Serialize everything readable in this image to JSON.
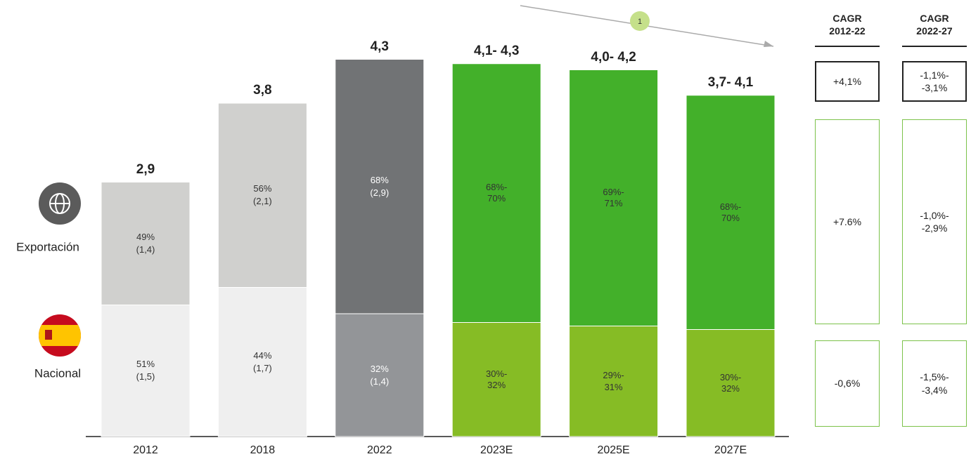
{
  "chart_data": {
    "type": "stacked_bar",
    "categories": [
      "2012",
      "2018",
      "2022",
      "2023E",
      "2025E",
      "2027E"
    ],
    "totals": [
      "2,9",
      "3,8",
      "4,3",
      "4,1- 4,3",
      "4,0- 4,2",
      "3,7- 4,1"
    ],
    "series": [
      {
        "name": "Nacional",
        "colors": [
          "#efefef",
          "#efefef",
          "#939598",
          "#86bc25",
          "#86bc25",
          "#86bc25"
        ],
        "values": [
          1.5,
          1.7,
          1.4,
          1.3,
          1.26,
          1.22
        ],
        "share_labels": [
          "51%",
          "44%",
          "32%",
          "30%-\n32%",
          "29%-\n31%",
          "30%-\n32%"
        ],
        "value_labels": [
          "(1,5)",
          "(1,7)",
          "(1,4)",
          null,
          null,
          null
        ]
      },
      {
        "name": "Exportación",
        "colors": [
          "#d0d0ce",
          "#d0d0ce",
          "#717375",
          "#43b02a",
          "#43b02a",
          "#43b02a"
        ],
        "values": [
          1.4,
          2.1,
          2.9,
          2.95,
          2.92,
          2.67
        ],
        "share_labels": [
          "49%",
          "56%",
          "68%",
          "68%-\n70%",
          "69%-\n71%",
          "68%-\n70%"
        ],
        "value_labels": [
          "(1,4)",
          "(2,1)",
          "(2,9)",
          null,
          null,
          null
        ]
      }
    ],
    "ylim": [
      0,
      4.5
    ],
    "annotation": "1"
  },
  "cagr": {
    "headers": [
      "CAGR\n2012-22",
      "CAGR\n2022-27"
    ],
    "rows": [
      [
        "+4,1%",
        "-1,1%-\n-3,1%"
      ],
      [
        "+7.6%",
        "-1,0%-\n-2,9%"
      ],
      [
        "-0,6%",
        "-1,5%-\n-3,4%"
      ]
    ]
  }
}
